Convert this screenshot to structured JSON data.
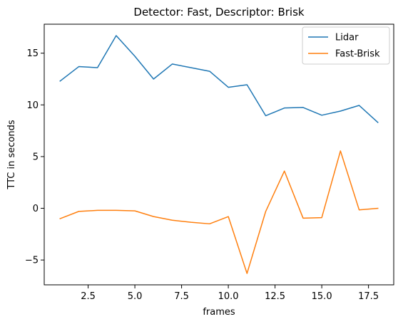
{
  "chart_data": {
    "type": "line",
    "title": "Detector: Fast, Descriptor: Brisk",
    "xlabel": "frames",
    "ylabel": "TTC in seconds",
    "xlim": [
      0.15,
      18.85
    ],
    "ylim": [
      -7.4,
      17.8
    ],
    "xticks": [
      2.5,
      5.0,
      7.5,
      10.0,
      12.5,
      15.0,
      17.5
    ],
    "xtick_labels": [
      "2.5",
      "5.0",
      "7.5",
      "10.0",
      "12.5",
      "15.0",
      "17.5"
    ],
    "yticks": [
      -5,
      0,
      5,
      10,
      15
    ],
    "ytick_labels": [
      "−5",
      "0",
      "5",
      "10",
      "15"
    ],
    "grid": false,
    "legend_position": "top-right",
    "x": [
      1,
      2,
      3,
      4,
      5,
      6,
      7,
      8,
      9,
      10,
      11,
      12,
      13,
      14,
      15,
      16,
      17,
      18
    ],
    "series": [
      {
        "name": "Lidar",
        "color": "#1f77b4",
        "values": [
          12.3,
          13.7,
          13.6,
          16.7,
          14.7,
          12.5,
          13.95,
          13.6,
          13.25,
          11.7,
          11.95,
          8.95,
          9.7,
          9.75,
          9.0,
          9.4,
          9.95,
          8.3
        ]
      },
      {
        "name": "Fast-Brisk",
        "color": "#ff7f0e",
        "values": [
          -1.0,
          -0.3,
          -0.2,
          -0.2,
          -0.25,
          -0.8,
          -1.15,
          -1.35,
          -1.5,
          -0.8,
          -6.3,
          -0.3,
          3.6,
          -0.95,
          -0.9,
          5.55,
          -0.15,
          0.0
        ]
      }
    ]
  }
}
